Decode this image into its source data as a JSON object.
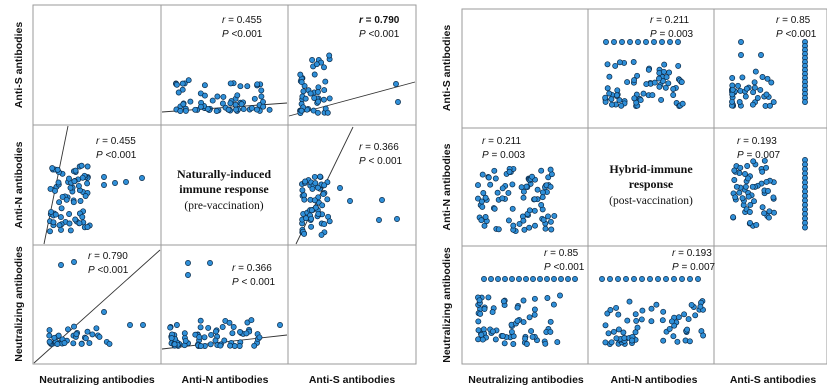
{
  "chart_data": [
    {
      "type": "scatter",
      "matrix_labels": [
        "Anti-S antibodies",
        "Anti-N antibodies",
        "Neutralizing antibodies"
      ],
      "x_labels": [
        "Neutralizing antibodies",
        "Anti-N antibodies",
        "Anti-S antibodies"
      ],
      "center_title": [
        "Naturally-induced",
        "immune response"
      ],
      "center_subtitle": "(pre-vaccination)",
      "correlations": [
        {
          "pair": "Neutralizing-AntiS",
          "r": "0.790",
          "p": "<0.001",
          "bold": true,
          "regression": true
        },
        {
          "pair": "AntiN-AntiS",
          "r": "0.455",
          "p": "<0.001",
          "bold": false,
          "regression": true
        },
        {
          "pair": "Neutralizing-AntiN",
          "r": "0.366",
          "p": "< 0.001",
          "bold": false,
          "regression": true
        }
      ]
    },
    {
      "type": "scatter",
      "matrix_labels": [
        "Anti-S antibodies",
        "Anti-N antibodies",
        "Neutralizing antibodies"
      ],
      "x_labels": [
        "Neutralizing antibodies",
        "Anti-N antibodies",
        "Anti-S antibodies"
      ],
      "center_title": [
        "Hybrid-immune",
        "response"
      ],
      "center_subtitle": "(post-vaccination)",
      "correlations": [
        {
          "pair": "Neutralizing-AntiS",
          "r": "0.85",
          "p": "<0.001",
          "bold": false,
          "regression": false
        },
        {
          "pair": "AntiN-AntiS",
          "r": "0.211",
          "p": "0.003",
          "bold": false,
          "regression": false
        },
        {
          "pair": "Neutralizing-AntiN",
          "r": "0.193",
          "p": "0.007",
          "bold": false,
          "regression": false
        }
      ]
    }
  ],
  "stat_prefix_r": "r",
  "stat_prefix_p": "P",
  "colors": {
    "point_fill": "#2f8fd8",
    "point_edge": "#0b2a48",
    "grid": "#9a9a9a",
    "line": "#333333"
  }
}
